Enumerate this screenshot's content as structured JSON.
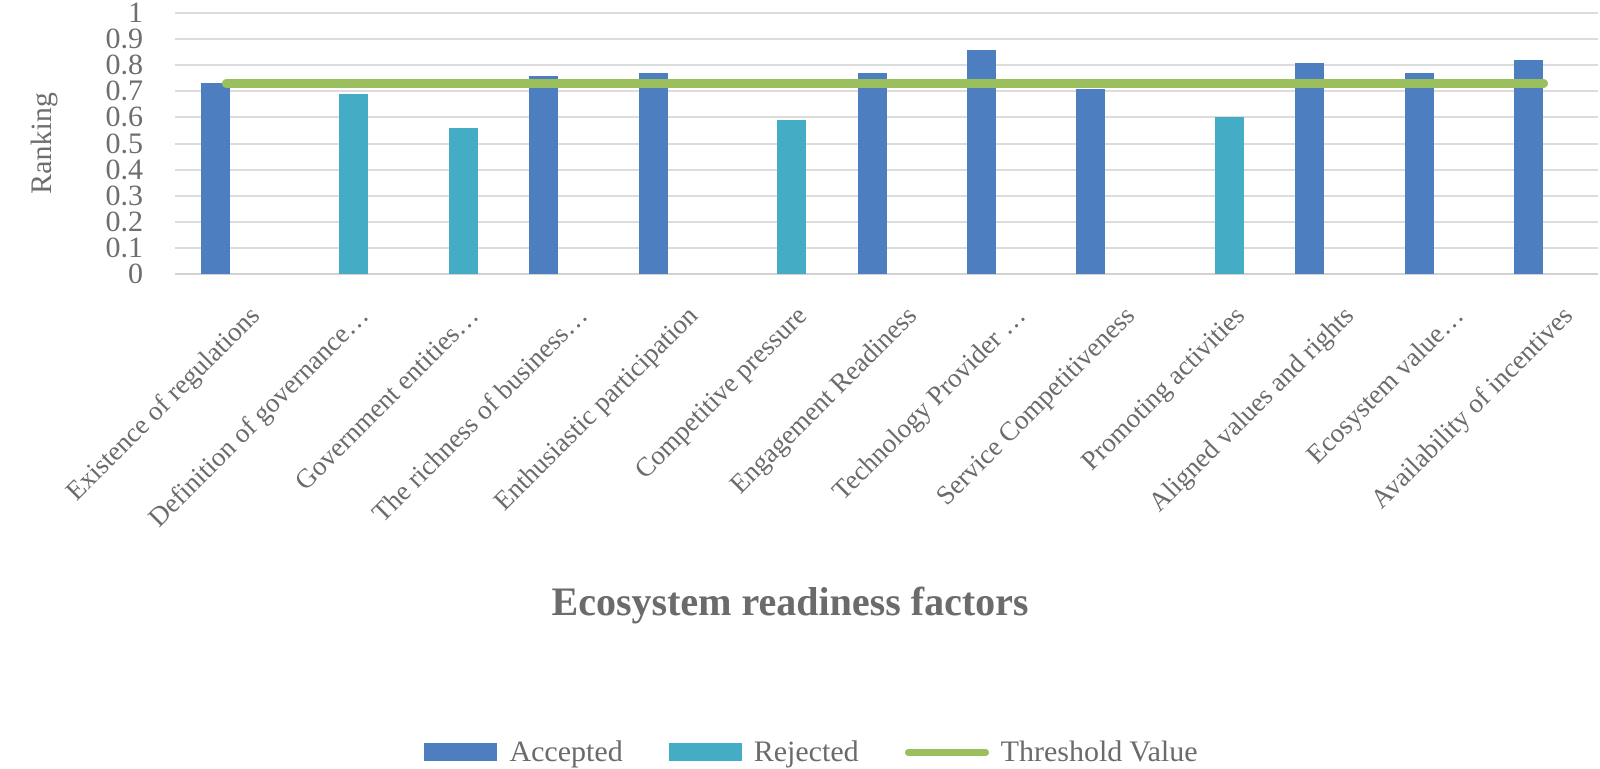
{
  "chart_data": {
    "type": "bar",
    "title": "",
    "xlabel": "Ecosystem readiness factors",
    "ylabel": "Ranking",
    "ylim": [
      0,
      1
    ],
    "ytick_labels": [
      "0",
      "0.1",
      "0.2",
      "0.3",
      "0.4",
      "0.5",
      "0.6",
      "0.7",
      "0.8",
      "0.9",
      "1"
    ],
    "grid": "horizontal",
    "legend_position": "bottom",
    "categories": [
      "Existence of regulations",
      "Definition of governance…",
      "Government entities…",
      "The richness of business…",
      "Enthusiastic participation",
      "Competitive pressure",
      "Engagement Readiness",
      "Technology Provider …",
      "Service Competitiveness",
      "Promoting activities",
      "Aligned values and rights",
      "Ecosystem value…",
      "Availability of incentives"
    ],
    "series": [
      {
        "name": "Accepted",
        "type": "bar",
        "color": "#4d7ebf",
        "values": [
          0.73,
          null,
          null,
          0.76,
          0.77,
          null,
          0.77,
          0.86,
          0.71,
          null,
          0.81,
          0.77,
          0.82
        ]
      },
      {
        "name": "Rejected",
        "type": "bar",
        "color": "#45acc5",
        "values": [
          null,
          0.69,
          0.56,
          null,
          null,
          0.59,
          null,
          null,
          null,
          0.6,
          null,
          null,
          null
        ]
      },
      {
        "name": "Threshold Value",
        "type": "line",
        "color": "#9cbf5e",
        "value": 0.73
      }
    ],
    "colors": {
      "text": "#6b6b6b",
      "grid": "#dcdcdc"
    }
  }
}
